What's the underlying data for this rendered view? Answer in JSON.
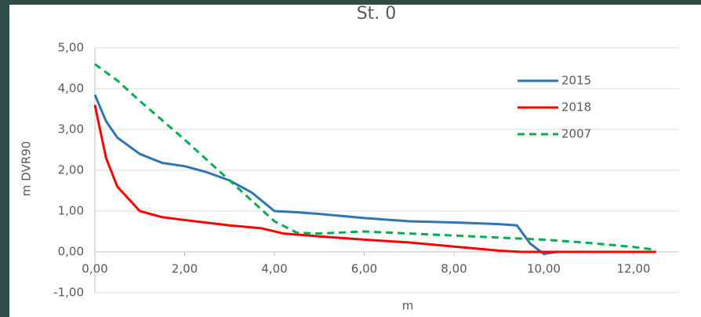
{
  "chart_data": {
    "type": "line",
    "title": "St. 0",
    "x_label": "m",
    "y_label": "m DVR90",
    "xlim": [
      0,
      13
    ],
    "ylim": [
      -1,
      5
    ],
    "xticks": [
      {
        "value": 0,
        "label": "0,00"
      },
      {
        "value": 2,
        "label": "2,00"
      },
      {
        "value": 4,
        "label": "4,00"
      },
      {
        "value": 6,
        "label": "6,00"
      },
      {
        "value": 8,
        "label": "8,00"
      },
      {
        "value": 10,
        "label": "10,00"
      },
      {
        "value": 12,
        "label": "12,00"
      }
    ],
    "yticks": [
      {
        "value": -1,
        "label": "-1,00"
      },
      {
        "value": 0,
        "label": "0,00"
      },
      {
        "value": 1,
        "label": "1,00"
      },
      {
        "value": 2,
        "label": "2,00"
      },
      {
        "value": 3,
        "label": "3,00"
      },
      {
        "value": 4,
        "label": "4,00"
      },
      {
        "value": 5,
        "label": "5,00"
      }
    ],
    "grid": true,
    "legend": "upper right",
    "series": [
      {
        "name": "2015",
        "color": "#2e75b6",
        "dashed": false,
        "x": [
          0,
          0.25,
          0.5,
          1,
          1.5,
          2,
          2.5,
          3,
          3.5,
          4,
          4.5,
          5,
          6,
          7,
          8,
          9,
          9.4,
          9.7,
          10,
          10.3,
          12.5
        ],
        "values": [
          3.85,
          3.2,
          2.8,
          2.4,
          2.18,
          2.1,
          1.95,
          1.75,
          1.45,
          1.0,
          0.97,
          0.93,
          0.83,
          0.75,
          0.72,
          0.68,
          0.65,
          0.2,
          -0.05,
          0,
          0
        ]
      },
      {
        "name": "2018",
        "color": "#ff0000",
        "dashed": false,
        "x": [
          0,
          0.25,
          0.5,
          1,
          1.5,
          2,
          3,
          3.7,
          4.2,
          5,
          6,
          7,
          8,
          9,
          9.5,
          12.5
        ],
        "values": [
          3.6,
          2.3,
          1.6,
          1.0,
          0.85,
          0.78,
          0.65,
          0.58,
          0.45,
          0.38,
          0.3,
          0.23,
          0.13,
          0.03,
          0,
          0
        ]
      },
      {
        "name": "2007",
        "color": "#00b050",
        "dashed": true,
        "x": [
          0,
          0.5,
          1,
          2,
          3,
          4,
          4.5,
          5,
          6,
          7,
          8,
          9,
          10,
          11,
          12,
          12.5
        ],
        "values": [
          4.6,
          4.2,
          3.7,
          2.75,
          1.75,
          0.75,
          0.47,
          0.45,
          0.5,
          0.45,
          0.4,
          0.35,
          0.3,
          0.22,
          0.12,
          0.05
        ]
      }
    ]
  }
}
